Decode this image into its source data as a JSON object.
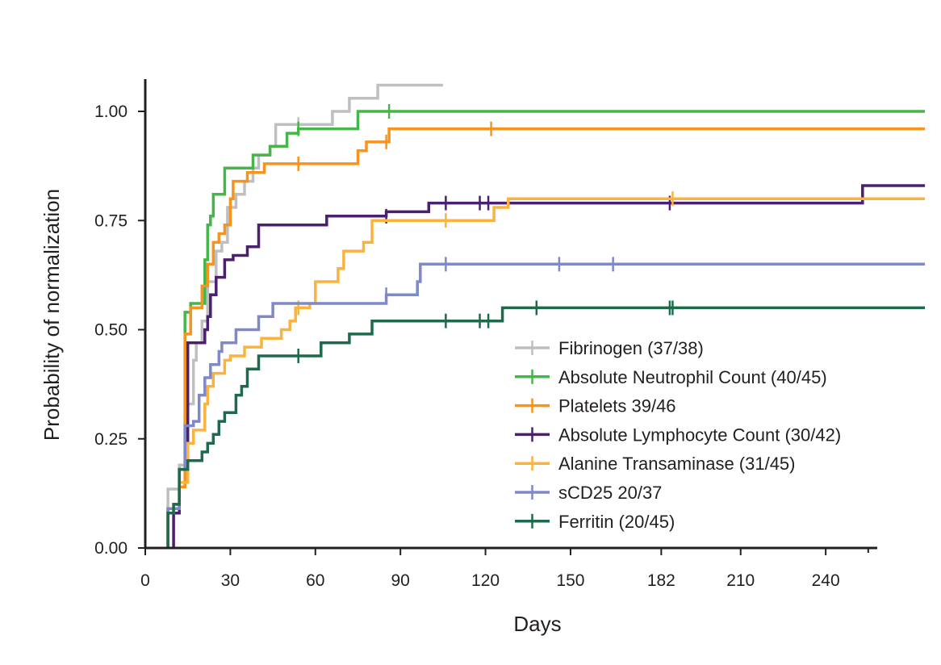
{
  "chart_data": {
    "type": "line",
    "subtype": "kaplan-meier step",
    "xlabel": "Days",
    "ylabel": "Probability of normalization",
    "xlim": [
      0,
      258
    ],
    "ylim": [
      0,
      1.07
    ],
    "x_ticks": [
      0,
      30,
      60,
      90,
      120,
      150,
      182,
      210,
      240
    ],
    "x_tick_labels": [
      "0",
      "30",
      "60",
      "90",
      "120",
      "150",
      "182",
      "210",
      "240"
    ],
    "y_ticks": [
      0,
      0.25,
      0.5,
      0.75,
      1.0
    ],
    "y_tick_labels": [
      "0.00",
      "0.25",
      "0.50",
      "0.75",
      "1.00"
    ],
    "legend_position": "lower-right",
    "series": [
      {
        "name": "Fibrinogen (37/38)",
        "color": "#bdbfc1",
        "points": [
          [
            8,
            0
          ],
          [
            8,
            0.1
          ],
          [
            8,
            0.135
          ],
          [
            12,
            0.135
          ],
          [
            12,
            0.19
          ],
          [
            15,
            0.19
          ],
          [
            15,
            0.33
          ],
          [
            17,
            0.33
          ],
          [
            17,
            0.43
          ],
          [
            18,
            0.43
          ],
          [
            18,
            0.47
          ],
          [
            20,
            0.47
          ],
          [
            20,
            0.52
          ],
          [
            22,
            0.52
          ],
          [
            22,
            0.61
          ],
          [
            25,
            0.61
          ],
          [
            25,
            0.68
          ],
          [
            27,
            0.68
          ],
          [
            27,
            0.7
          ],
          [
            29,
            0.7
          ],
          [
            29,
            0.78
          ],
          [
            32,
            0.78
          ],
          [
            32,
            0.81
          ],
          [
            35,
            0.81
          ],
          [
            35,
            0.84
          ],
          [
            38,
            0.84
          ],
          [
            38,
            0.87
          ],
          [
            40,
            0.87
          ],
          [
            40,
            0.9
          ],
          [
            44,
            0.9
          ],
          [
            44,
            0.92
          ],
          [
            46,
            0.92
          ],
          [
            46,
            0.97
          ],
          [
            66,
            0.97
          ],
          [
            66,
            1.0
          ],
          [
            72,
            1.0
          ],
          [
            72,
            1.03
          ],
          [
            82,
            1.03
          ],
          [
            82,
            1.06
          ],
          [
            105,
            1.06
          ]
        ],
        "censored": [
          [
            54,
            0.97
          ]
        ]
      },
      {
        "name": "Absolute Neutrophil Count (40/45)",
        "color": "#45b649",
        "points": [
          [
            8,
            0
          ],
          [
            8,
            0.09
          ],
          [
            12,
            0.09
          ],
          [
            12,
            0.14
          ],
          [
            14,
            0.14
          ],
          [
            14,
            0.54
          ],
          [
            16,
            0.54
          ],
          [
            16,
            0.56
          ],
          [
            21,
            0.56
          ],
          [
            21,
            0.66
          ],
          [
            22,
            0.66
          ],
          [
            22,
            0.74
          ],
          [
            23,
            0.74
          ],
          [
            23,
            0.76
          ],
          [
            24,
            0.76
          ],
          [
            24,
            0.81
          ],
          [
            28,
            0.81
          ],
          [
            28,
            0.87
          ],
          [
            38,
            0.87
          ],
          [
            38,
            0.9
          ],
          [
            44,
            0.9
          ],
          [
            44,
            0.92
          ],
          [
            50,
            0.92
          ],
          [
            50,
            0.95
          ],
          [
            54,
            0.95
          ],
          [
            54,
            0.96
          ],
          [
            75,
            0.96
          ],
          [
            75,
            1.0
          ],
          [
            275,
            1.0
          ]
        ],
        "censored": [
          [
            54,
            0.96
          ],
          [
            86,
            1.0
          ]
        ]
      },
      {
        "name": "Platelets 39/46",
        "color": "#f7941d",
        "points": [
          [
            8,
            0
          ],
          [
            8,
            0.09
          ],
          [
            12,
            0.09
          ],
          [
            12,
            0.14
          ],
          [
            14,
            0.14
          ],
          [
            14,
            0.49
          ],
          [
            16,
            0.49
          ],
          [
            16,
            0.55
          ],
          [
            20,
            0.55
          ],
          [
            20,
            0.6
          ],
          [
            22,
            0.6
          ],
          [
            22,
            0.65
          ],
          [
            24,
            0.65
          ],
          [
            24,
            0.7
          ],
          [
            26,
            0.7
          ],
          [
            26,
            0.72
          ],
          [
            28,
            0.72
          ],
          [
            28,
            0.74
          ],
          [
            30,
            0.74
          ],
          [
            30,
            0.8
          ],
          [
            31,
            0.8
          ],
          [
            31,
            0.84
          ],
          [
            36,
            0.84
          ],
          [
            36,
            0.86
          ],
          [
            42,
            0.86
          ],
          [
            42,
            0.88
          ],
          [
            75,
            0.88
          ],
          [
            75,
            0.91
          ],
          [
            78,
            0.91
          ],
          [
            78,
            0.93
          ],
          [
            86,
            0.93
          ],
          [
            86,
            0.96
          ],
          [
            275,
            0.96
          ]
        ],
        "censored": [
          [
            54,
            0.88
          ],
          [
            85,
            0.93
          ],
          [
            122,
            0.96
          ]
        ]
      },
      {
        "name": "Absolute Lymphocyte Count (30/42)",
        "color": "#4b2070",
        "points": [
          [
            10,
            0
          ],
          [
            10,
            0.08
          ],
          [
            12,
            0.08
          ],
          [
            12,
            0.18
          ],
          [
            15,
            0.18
          ],
          [
            15,
            0.47
          ],
          [
            21,
            0.47
          ],
          [
            21,
            0.5
          ],
          [
            22,
            0.5
          ],
          [
            22,
            0.53
          ],
          [
            23,
            0.53
          ],
          [
            23,
            0.58
          ],
          [
            25,
            0.58
          ],
          [
            25,
            0.62
          ],
          [
            28,
            0.62
          ],
          [
            28,
            0.66
          ],
          [
            31,
            0.66
          ],
          [
            31,
            0.67
          ],
          [
            36,
            0.67
          ],
          [
            36,
            0.69
          ],
          [
            40,
            0.69
          ],
          [
            40,
            0.74
          ],
          [
            64,
            0.74
          ],
          [
            64,
            0.76
          ],
          [
            85,
            0.76
          ],
          [
            85,
            0.77
          ],
          [
            100,
            0.77
          ],
          [
            100,
            0.79
          ],
          [
            253,
            0.79
          ],
          [
            253,
            0.83
          ],
          [
            275,
            0.83
          ]
        ],
        "censored": [
          [
            85,
            0.76
          ],
          [
            106,
            0.79
          ],
          [
            118,
            0.79
          ],
          [
            121,
            0.79
          ],
          [
            185,
            0.79
          ]
        ]
      },
      {
        "name": "Alanine Transaminase (31/45)",
        "color": "#fbb33f",
        "points": [
          [
            8,
            0
          ],
          [
            8,
            0.08
          ],
          [
            10,
            0.08
          ],
          [
            10,
            0.1
          ],
          [
            12,
            0.1
          ],
          [
            12,
            0.15
          ],
          [
            15,
            0.15
          ],
          [
            15,
            0.24
          ],
          [
            17,
            0.24
          ],
          [
            17,
            0.27
          ],
          [
            21,
            0.27
          ],
          [
            21,
            0.33
          ],
          [
            22,
            0.33
          ],
          [
            22,
            0.37
          ],
          [
            24,
            0.37
          ],
          [
            24,
            0.4
          ],
          [
            28,
            0.4
          ],
          [
            28,
            0.43
          ],
          [
            30,
            0.43
          ],
          [
            30,
            0.44
          ],
          [
            35,
            0.44
          ],
          [
            35,
            0.46
          ],
          [
            41,
            0.46
          ],
          [
            41,
            0.48
          ],
          [
            48,
            0.48
          ],
          [
            48,
            0.5
          ],
          [
            51,
            0.5
          ],
          [
            51,
            0.52
          ],
          [
            53,
            0.52
          ],
          [
            53,
            0.55
          ],
          [
            58,
            0.55
          ],
          [
            58,
            0.56
          ],
          [
            60,
            0.56
          ],
          [
            60,
            0.61
          ],
          [
            68,
            0.61
          ],
          [
            68,
            0.64
          ],
          [
            70,
            0.64
          ],
          [
            70,
            0.68
          ],
          [
            77,
            0.68
          ],
          [
            77,
            0.7
          ],
          [
            80,
            0.7
          ],
          [
            80,
            0.75
          ],
          [
            123,
            0.75
          ],
          [
            123,
            0.78
          ],
          [
            128,
            0.78
          ],
          [
            128,
            0.8
          ],
          [
            275,
            0.8
          ]
        ],
        "censored": [
          [
            54,
            0.55
          ],
          [
            106,
            0.75
          ],
          [
            186,
            0.8
          ]
        ]
      },
      {
        "name": "sCD25 20/37",
        "color": "#7f88c9",
        "points": [
          [
            8,
            0
          ],
          [
            8,
            0.09
          ],
          [
            12,
            0.09
          ],
          [
            12,
            0.18
          ],
          [
            14,
            0.18
          ],
          [
            14,
            0.28
          ],
          [
            17,
            0.28
          ],
          [
            17,
            0.29
          ],
          [
            19,
            0.29
          ],
          [
            19,
            0.35
          ],
          [
            21,
            0.35
          ],
          [
            21,
            0.39
          ],
          [
            23,
            0.39
          ],
          [
            23,
            0.42
          ],
          [
            26,
            0.42
          ],
          [
            26,
            0.45
          ],
          [
            27,
            0.45
          ],
          [
            27,
            0.47
          ],
          [
            32,
            0.47
          ],
          [
            32,
            0.5
          ],
          [
            40,
            0.5
          ],
          [
            40,
            0.53
          ],
          [
            45,
            0.53
          ],
          [
            45,
            0.56
          ],
          [
            85,
            0.56
          ],
          [
            85,
            0.58
          ],
          [
            96,
            0.58
          ],
          [
            96,
            0.61
          ],
          [
            97,
            0.61
          ],
          [
            97,
            0.65
          ],
          [
            275,
            0.65
          ]
        ],
        "censored": [
          [
            85,
            0.58
          ],
          [
            106,
            0.65
          ],
          [
            146,
            0.65
          ],
          [
            165,
            0.65
          ]
        ]
      },
      {
        "name": "Ferritin (20/45)",
        "color": "#1d6b4c",
        "points": [
          [
            8,
            0
          ],
          [
            8,
            0.08
          ],
          [
            10,
            0.08
          ],
          [
            10,
            0.1
          ],
          [
            12,
            0.1
          ],
          [
            12,
            0.18
          ],
          [
            15,
            0.18
          ],
          [
            15,
            0.2
          ],
          [
            20,
            0.2
          ],
          [
            20,
            0.22
          ],
          [
            22,
            0.22
          ],
          [
            22,
            0.24
          ],
          [
            24,
            0.24
          ],
          [
            24,
            0.26
          ],
          [
            26,
            0.26
          ],
          [
            26,
            0.29
          ],
          [
            28,
            0.29
          ],
          [
            28,
            0.31
          ],
          [
            32,
            0.31
          ],
          [
            32,
            0.35
          ],
          [
            34,
            0.35
          ],
          [
            34,
            0.37
          ],
          [
            36,
            0.37
          ],
          [
            36,
            0.41
          ],
          [
            40,
            0.41
          ],
          [
            40,
            0.44
          ],
          [
            62,
            0.44
          ],
          [
            62,
            0.47
          ],
          [
            72,
            0.47
          ],
          [
            72,
            0.49
          ],
          [
            80,
            0.49
          ],
          [
            80,
            0.52
          ],
          [
            126,
            0.52
          ],
          [
            126,
            0.55
          ],
          [
            275,
            0.55
          ]
        ],
        "censored": [
          [
            54,
            0.44
          ],
          [
            106,
            0.52
          ],
          [
            118,
            0.52
          ],
          [
            121,
            0.52
          ],
          [
            138,
            0.55
          ],
          [
            185,
            0.55
          ],
          [
            186,
            0.55
          ]
        ]
      }
    ]
  }
}
